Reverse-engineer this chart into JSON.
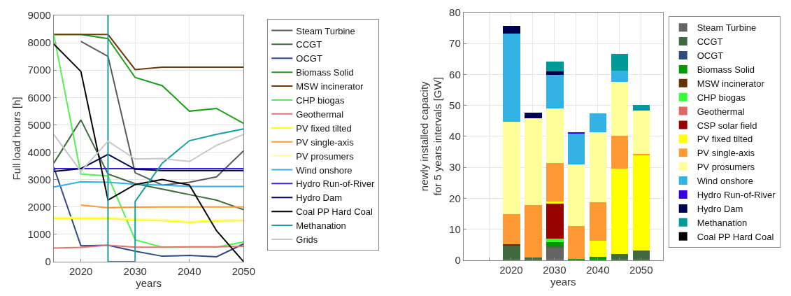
{
  "chart_data": [
    {
      "type": "line",
      "xlabel": "years",
      "ylabel": "Full load hours [h]",
      "x": [
        2015,
        2020,
        2025,
        2030,
        2035,
        2040,
        2045,
        2050
      ],
      "xlim": [
        2015,
        2050
      ],
      "xticks": [
        2020,
        2030,
        2040,
        2050
      ],
      "ylim": [
        0,
        9000
      ],
      "yticks": [
        0,
        1000,
        2000,
        3000,
        4000,
        5000,
        6000,
        7000,
        8000,
        9000
      ],
      "grid": true,
      "legend": "right",
      "marker": "none",
      "line_style": "solid",
      "series": [
        {
          "name": "Steam Turbine",
          "color": "#5a5a5a",
          "values": [
            null,
            8050,
            7500,
            3250,
            2800,
            2900,
            3100,
            4050
          ]
        },
        {
          "name": "CCGT",
          "color": "#3f6a3f",
          "values": [
            3600,
            5180,
            3200,
            2850,
            2650,
            2450,
            2250,
            1900
          ]
        },
        {
          "name": "OCGT",
          "color": "#2e4a80",
          "values": [
            3450,
            580,
            600,
            380,
            200,
            230,
            180,
            650
          ]
        },
        {
          "name": "Biomass Solid",
          "color": "#1a9e1a",
          "values": [
            8300,
            8300,
            8150,
            6730,
            6430,
            5500,
            5600,
            5050
          ]
        },
        {
          "name": "MSW incinerator",
          "color": "#6b3a0b",
          "values": [
            8300,
            8300,
            8300,
            7020,
            7110,
            7110,
            7110,
            7110
          ]
        },
        {
          "name": "CHP biogas",
          "color": "#55f055",
          "values": [
            8300,
            3200,
            3130,
            800,
            530,
            530,
            530,
            720
          ]
        },
        {
          "name": "Geothermal",
          "color": "#e87070",
          "values": [
            500,
            520,
            600,
            530,
            530,
            540,
            540,
            560
          ]
        },
        {
          "name": "PV fixed tilted",
          "color": "#ffff00",
          "values": [
            1580,
            1580,
            1580,
            1520,
            1500,
            1430,
            1490,
            1500
          ]
        },
        {
          "name": "PV single-axis",
          "color": "#ff9933",
          "values": [
            null,
            2070,
            1970,
            1990,
            2000,
            2000,
            2000,
            2000
          ]
        },
        {
          "name": "PV prosumers",
          "color": "#ffff99",
          "values": [
            1620,
            1620,
            1620,
            1560,
            1540,
            1480,
            1530,
            1540
          ]
        },
        {
          "name": "Wind onshore",
          "color": "#33b2e6",
          "values": [
            2730,
            2920,
            2900,
            2830,
            2800,
            2750,
            2750,
            2750
          ]
        },
        {
          "name": "Hydro Run-of-River",
          "color": "#4020e0",
          "values": [
            3400,
            3400,
            3400,
            3400,
            3400,
            3400,
            3400,
            3400
          ]
        },
        {
          "name": "Hydro Dam",
          "color": "#000050",
          "values": [
            3300,
            3400,
            3920,
            3380,
            3330,
            3330,
            3330,
            3330
          ]
        },
        {
          "name": "Coal PP Hard Coal",
          "color": "#000000",
          "values": [
            7950,
            6950,
            2250,
            2820,
            3000,
            2800,
            1130,
            0
          ]
        },
        {
          "name": "Methanation",
          "color": "#1a9e9e",
          "x": [
            2025,
            2025,
            2030,
            2030,
            2035,
            2040,
            2045,
            2050
          ],
          "values": [
            9000,
            0,
            0,
            2200,
            3600,
            4420,
            4650,
            4850
          ]
        },
        {
          "name": "Grids",
          "color": "#c8c8c8",
          "values": [
            4650,
            3300,
            4400,
            3750,
            3770,
            3660,
            4250,
            4650
          ]
        }
      ]
    },
    {
      "type": "bar",
      "stacked": true,
      "xlabel": "years",
      "ylabel": "newly installed capacity\nfor 5 years intervals [GW]",
      "x": [
        2020,
        2025,
        2030,
        2035,
        2040,
        2045,
        2050
      ],
      "xlim": [
        2009,
        2055
      ],
      "xticks": [
        {
          "value": 2015,
          "label": null
        },
        2020,
        {
          "value": 2025,
          "label": null
        },
        2030,
        {
          "value": 2035,
          "label": null
        },
        2040,
        {
          "value": 2045,
          "label": null
        },
        2050
      ],
      "ylim": [
        0,
        80
      ],
      "yticks": [
        0,
        10,
        20,
        30,
        40,
        50,
        60,
        70,
        80
      ],
      "grid": true,
      "legend": "right",
      "series": [
        {
          "name": "Steam Turbine",
          "color": "#646464",
          "values": [
            0,
            0,
            4.0,
            0,
            0,
            0,
            0
          ]
        },
        {
          "name": "CCGT",
          "color": "#3f6a3f",
          "values": [
            4.8,
            1.0,
            0.5,
            0,
            0,
            2.1,
            3.2
          ]
        },
        {
          "name": "OCGT",
          "color": "#2e4a80",
          "values": [
            0,
            0,
            0,
            0,
            0,
            0,
            0
          ]
        },
        {
          "name": "Biomass Solid",
          "color": "#009900",
          "values": [
            0,
            0,
            1.3,
            0.4,
            1.2,
            0,
            0
          ]
        },
        {
          "name": "MSW incinerator",
          "color": "#663300",
          "values": [
            0.3,
            0,
            0,
            0,
            0,
            0,
            0
          ]
        },
        {
          "name": "CHP biogas",
          "color": "#33ff33",
          "values": [
            0,
            0,
            1.3,
            0,
            0,
            0,
            0
          ]
        },
        {
          "name": "Geothermal",
          "color": "#e06666",
          "values": [
            0,
            0,
            0,
            0,
            0,
            0,
            0
          ]
        },
        {
          "name": "CSP solar field",
          "color": "#990000",
          "values": [
            0,
            0,
            11.2,
            0,
            0,
            0,
            0
          ]
        },
        {
          "name": "PV fixed tilted",
          "color": "#ffff00",
          "values": [
            0,
            0,
            0.8,
            0,
            5.2,
            27.4,
            30.7
          ]
        },
        {
          "name": "PV single-axis",
          "color": "#ff9933",
          "values": [
            9.9,
            16.9,
            12.3,
            10.7,
            12.3,
            10.8,
            0.5
          ]
        },
        {
          "name": "PV prosumers",
          "color": "#ffff99",
          "values": [
            29.8,
            28.0,
            17.6,
            19.9,
            22.7,
            17.4,
            14.0
          ]
        },
        {
          "name": "Wind onshore",
          "color": "#33b2e6",
          "values": [
            28.5,
            0,
            11.0,
            10.0,
            6.0,
            3.5,
            0
          ]
        },
        {
          "name": "Hydro Run-of-River",
          "color": "#3300e6",
          "values": [
            0,
            0,
            0,
            0.4,
            0,
            0,
            0
          ]
        },
        {
          "name": "Hydro Dam",
          "color": "#000050",
          "values": [
            2.5,
            1.9,
            1.1,
            0,
            0,
            0,
            0
          ]
        },
        {
          "name": "Methanation",
          "color": "#009999",
          "values": [
            0,
            0,
            3.0,
            0,
            0,
            5.4,
            1.8
          ]
        },
        {
          "name": "Coal PP Hard Coal",
          "color": "#000000",
          "values": [
            0,
            0,
            0,
            0,
            0,
            0,
            0
          ]
        }
      ]
    }
  ]
}
